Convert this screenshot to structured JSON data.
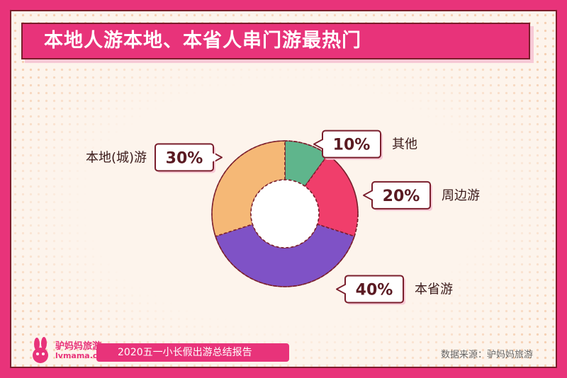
{
  "title": "本地人游本地、本省人串门游最热门",
  "footer": {
    "report_name": "2020五一小长假出游总结报告",
    "source": "数据来源：驴妈妈旅游",
    "logo_name": "驴妈妈旅游",
    "logo_url": "lvmama.com"
  },
  "chart_data": {
    "type": "pie",
    "style": "donut",
    "categories": [
      "其他",
      "周边游",
      "本省游",
      "本地(城)游"
    ],
    "values": [
      10,
      20,
      40,
      30
    ],
    "labels": [
      "10%",
      "20%",
      "40%",
      "30%"
    ],
    "colors": [
      "#5fb58c",
      "#f03e6b",
      "#7f52c6",
      "#f5b876"
    ]
  },
  "colors": {
    "background": "#e8337a",
    "panel": "#fdf4ec",
    "outline": "#7a1e2c"
  }
}
